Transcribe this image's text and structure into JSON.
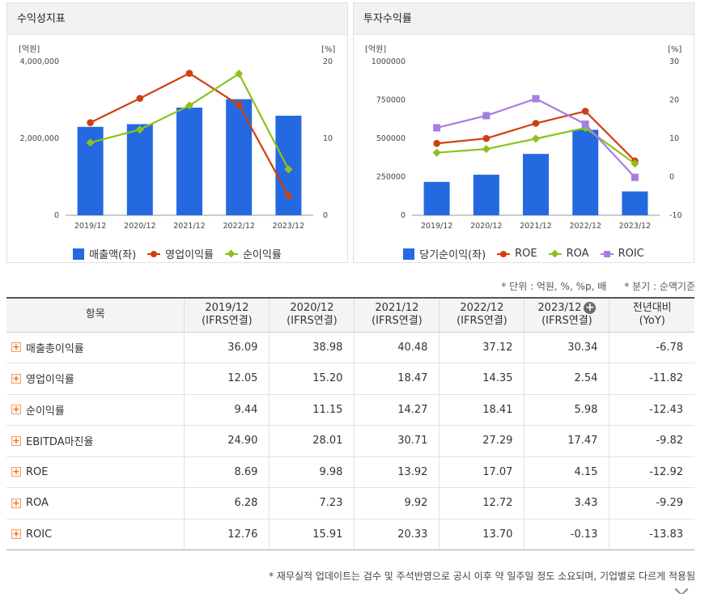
{
  "chart_data": [
    {
      "type": "bar",
      "panel_title": "수익성지표",
      "y_left_unit": "[억원]",
      "y_right_unit": "[%]",
      "categories": [
        "2019/12",
        "2020/12",
        "2021/12",
        "2022/12",
        "2023/12"
      ],
      "y_left_ticks": [
        "0",
        "2,000,000",
        "4,000,000"
      ],
      "y_right_ticks": [
        "0",
        "10",
        "20"
      ],
      "ylim_left": [
        0,
        4000000
      ],
      "ylim_right": [
        0,
        20
      ],
      "grid": false,
      "legend_position": "bottom",
      "series": [
        {
          "name": "매출액(좌)",
          "type": "bar",
          "axis": "left",
          "color": "#2469e0",
          "values": [
            2300000,
            2370000,
            2800000,
            3020000,
            2590000
          ]
        },
        {
          "name": "영업이익률",
          "type": "line",
          "axis": "right",
          "marker": "circle",
          "color": "#d0400e",
          "values": [
            12.05,
            15.2,
            18.47,
            14.35,
            2.54
          ]
        },
        {
          "name": "순이익률",
          "type": "line",
          "axis": "right",
          "marker": "diamond",
          "color": "#8cc21d",
          "values": [
            9.44,
            11.15,
            14.27,
            18.41,
            5.98
          ]
        }
      ]
    },
    {
      "type": "bar",
      "panel_title": "투자수익률",
      "y_left_unit": "[억원]",
      "y_right_unit": "[%]",
      "categories": [
        "2019/12",
        "2020/12",
        "2021/12",
        "2022/12",
        "2023/12"
      ],
      "y_left_ticks": [
        "0",
        "250000",
        "500000",
        "750000",
        "1000000"
      ],
      "y_right_ticks": [
        "-10",
        "0",
        "10",
        "20",
        "30"
      ],
      "ylim_left": [
        0,
        1000000
      ],
      "ylim_right": [
        -10,
        30
      ],
      "grid": false,
      "legend_position": "bottom",
      "series": [
        {
          "name": "당기순이익(좌)",
          "type": "bar",
          "axis": "left",
          "color": "#2469e0",
          "values": [
            217000,
            264000,
            399000,
            556000,
            155000
          ]
        },
        {
          "name": "ROE",
          "type": "line",
          "axis": "right",
          "marker": "circle",
          "color": "#d0400e",
          "values": [
            8.69,
            9.98,
            13.92,
            17.07,
            4.15
          ]
        },
        {
          "name": "ROA",
          "type": "line",
          "axis": "right",
          "marker": "diamond",
          "color": "#8cc21d",
          "values": [
            6.28,
            7.23,
            9.92,
            12.72,
            3.43
          ]
        },
        {
          "name": "ROIC",
          "type": "line",
          "axis": "right",
          "marker": "square",
          "color": "#a77de0",
          "values": [
            12.76,
            15.91,
            20.33,
            13.7,
            -0.13
          ]
        }
      ]
    }
  ],
  "notes": {
    "unit": "* 단위 : 억원, %, %p, 배",
    "quarter": "* 분기 : 순액기준"
  },
  "table": {
    "header_item": "항목",
    "header_yoy_1": "전년대비",
    "header_yoy_2": "(YoY)",
    "columns": [
      {
        "period": "2019/12",
        "basis": "(IFRS연결)"
      },
      {
        "period": "2020/12",
        "basis": "(IFRS연결)"
      },
      {
        "period": "2021/12",
        "basis": "(IFRS연결)"
      },
      {
        "period": "2022/12",
        "basis": "(IFRS연결)"
      },
      {
        "period": "2023/12",
        "basis": "(IFRS연결)"
      }
    ],
    "expand_symbol": "+",
    "rows": [
      {
        "label": "매출총이익률",
        "values": [
          "36.09",
          "38.98",
          "40.48",
          "37.12",
          "30.34"
        ],
        "yoy": "-6.78"
      },
      {
        "label": "영업이익률",
        "values": [
          "12.05",
          "15.20",
          "18.47",
          "14.35",
          "2.54"
        ],
        "yoy": "-11.82"
      },
      {
        "label": "순이익률",
        "values": [
          "9.44",
          "11.15",
          "14.27",
          "18.41",
          "5.98"
        ],
        "yoy": "-12.43"
      },
      {
        "label": "EBITDA마진율",
        "values": [
          "24.90",
          "28.01",
          "30.71",
          "27.29",
          "17.47"
        ],
        "yoy": "-9.82"
      },
      {
        "label": "ROE",
        "values": [
          "8.69",
          "9.98",
          "13.92",
          "17.07",
          "4.15"
        ],
        "yoy": "-12.92"
      },
      {
        "label": "ROA",
        "values": [
          "6.28",
          "7.23",
          "9.92",
          "12.72",
          "3.43"
        ],
        "yoy": "-9.29"
      },
      {
        "label": "ROIC",
        "values": [
          "12.76",
          "15.91",
          "20.33",
          "13.70",
          "-0.13"
        ],
        "yoy": "-13.83"
      }
    ]
  },
  "footnote": "* 재무실적 업데이트는 검수 및 주석반영으로 공시 이후 약 일주일 정도 소요되며, 기업별로 다르게 적용됨"
}
